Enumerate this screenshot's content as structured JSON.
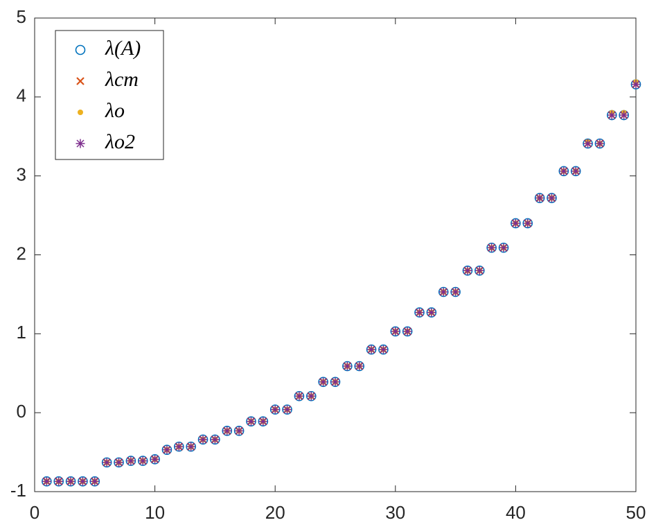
{
  "chart_data": {
    "type": "scatter",
    "x": [
      1,
      2,
      3,
      4,
      5,
      6,
      7,
      8,
      9,
      10,
      11,
      12,
      13,
      14,
      15,
      16,
      17,
      18,
      19,
      20,
      21,
      22,
      23,
      24,
      25,
      26,
      27,
      28,
      29,
      30,
      31,
      32,
      33,
      34,
      35,
      36,
      37,
      38,
      39,
      40,
      41,
      42,
      43,
      44,
      45,
      46,
      47,
      48,
      49,
      50
    ],
    "series": [
      {
        "name": "λ(A)",
        "color": "#0072BD",
        "marker": "o",
        "values": [
          -0.87,
          -0.87,
          -0.87,
          -0.87,
          -0.87,
          -0.63,
          -0.63,
          -0.61,
          -0.61,
          -0.59,
          -0.47,
          -0.43,
          -0.43,
          -0.34,
          -0.34,
          -0.23,
          -0.23,
          -0.11,
          -0.11,
          0.04,
          0.04,
          0.21,
          0.21,
          0.39,
          0.39,
          0.59,
          0.59,
          0.8,
          0.8,
          1.03,
          1.03,
          1.27,
          1.27,
          1.53,
          1.53,
          1.8,
          1.8,
          2.09,
          2.09,
          2.4,
          2.4,
          2.72,
          2.72,
          3.06,
          3.06,
          3.41,
          3.41,
          3.77,
          3.77,
          4.16
        ]
      },
      {
        "name": "λcm",
        "color": "#D95319",
        "marker": "x",
        "values": [
          -0.87,
          -0.87,
          -0.87,
          -0.87,
          -0.87,
          -0.63,
          -0.63,
          -0.61,
          -0.61,
          -0.59,
          -0.47,
          -0.43,
          -0.43,
          -0.34,
          -0.34,
          -0.23,
          -0.23,
          -0.11,
          -0.11,
          0.04,
          0.04,
          0.21,
          0.21,
          0.39,
          0.39,
          0.59,
          0.59,
          0.8,
          0.8,
          1.03,
          1.03,
          1.27,
          1.27,
          1.53,
          1.53,
          1.8,
          1.8,
          2.09,
          2.09,
          2.4,
          2.4,
          2.72,
          2.72,
          3.06,
          3.06,
          3.41,
          3.41,
          3.77,
          3.77,
          4.16
        ]
      },
      {
        "name": "λo",
        "color": "#EDB120",
        "marker": ".",
        "values": [
          -0.87,
          -0.87,
          -0.87,
          -0.87,
          -0.87,
          -0.63,
          -0.63,
          -0.61,
          -0.61,
          -0.59,
          -0.47,
          -0.43,
          -0.43,
          -0.34,
          -0.34,
          -0.23,
          -0.23,
          -0.11,
          -0.11,
          0.04,
          0.04,
          0.21,
          0.21,
          0.39,
          0.39,
          0.59,
          0.59,
          0.8,
          0.8,
          1.03,
          1.03,
          1.27,
          1.27,
          1.53,
          1.53,
          1.8,
          1.8,
          2.09,
          2.09,
          2.4,
          2.4,
          2.72,
          2.72,
          3.06,
          3.06,
          3.43,
          3.41,
          3.8,
          3.8,
          4.19
        ]
      },
      {
        "name": "λo2",
        "color": "#7E2F8E",
        "marker": "*",
        "values": [
          -0.87,
          -0.87,
          -0.87,
          -0.87,
          -0.87,
          -0.63,
          -0.63,
          -0.61,
          -0.61,
          -0.59,
          -0.47,
          -0.43,
          -0.43,
          -0.34,
          -0.34,
          -0.23,
          -0.23,
          -0.11,
          -0.11,
          0.04,
          0.04,
          0.21,
          0.21,
          0.39,
          0.39,
          0.59,
          0.59,
          0.8,
          0.8,
          1.03,
          1.03,
          1.27,
          1.27,
          1.53,
          1.53,
          1.8,
          1.8,
          2.09,
          2.09,
          2.4,
          2.4,
          2.72,
          2.72,
          3.06,
          3.06,
          3.41,
          3.41,
          3.77,
          3.77,
          4.16
        ]
      }
    ],
    "xlim": [
      0,
      50
    ],
    "xticks": [
      0,
      10,
      20,
      30,
      40,
      50
    ],
    "ylim": [
      -1,
      5
    ],
    "yticks": [
      -1,
      0,
      1,
      2,
      3,
      4,
      5
    ],
    "grid": false,
    "legend": "northwest"
  }
}
